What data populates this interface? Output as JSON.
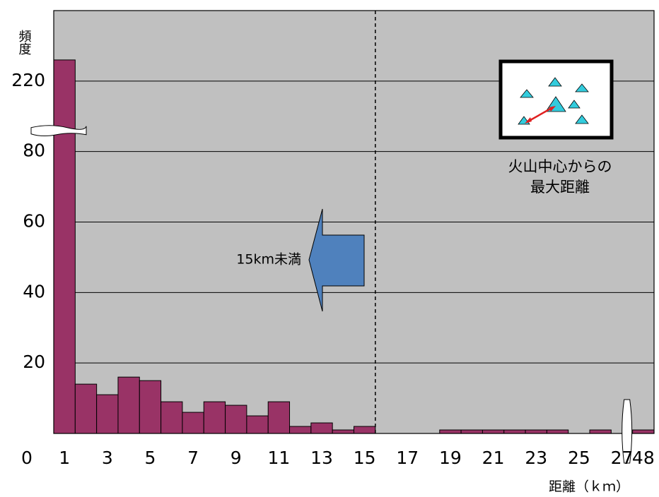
{
  "chart_data": {
    "type": "bar",
    "ylabel": "頻度",
    "xlabel": "距離（ｋｍ）",
    "categories": [
      "1",
      null,
      "3",
      null,
      "5",
      null,
      "7",
      null,
      "9",
      null,
      "11",
      null,
      "13",
      null,
      "15",
      null,
      "17",
      null,
      "19",
      null,
      "21",
      null,
      "23",
      null,
      "25",
      null,
      "27",
      "48"
    ],
    "values": [
      226,
      14,
      11,
      16,
      15,
      9,
      6,
      9,
      8,
      5,
      9,
      2,
      3,
      1,
      2,
      0,
      0,
      0,
      1,
      1,
      1,
      1,
      1,
      1,
      0,
      1,
      0,
      1
    ],
    "color": "#993366",
    "ylim": [
      0,
      240
    ],
    "ybreak": [
      86,
      206
    ],
    "yticks": [
      0,
      20,
      40,
      60,
      80,
      220
    ],
    "grid": true,
    "arrow_label": "15km未満",
    "inset_caption": [
      "火山中心からの",
      "最大距離"
    ]
  }
}
